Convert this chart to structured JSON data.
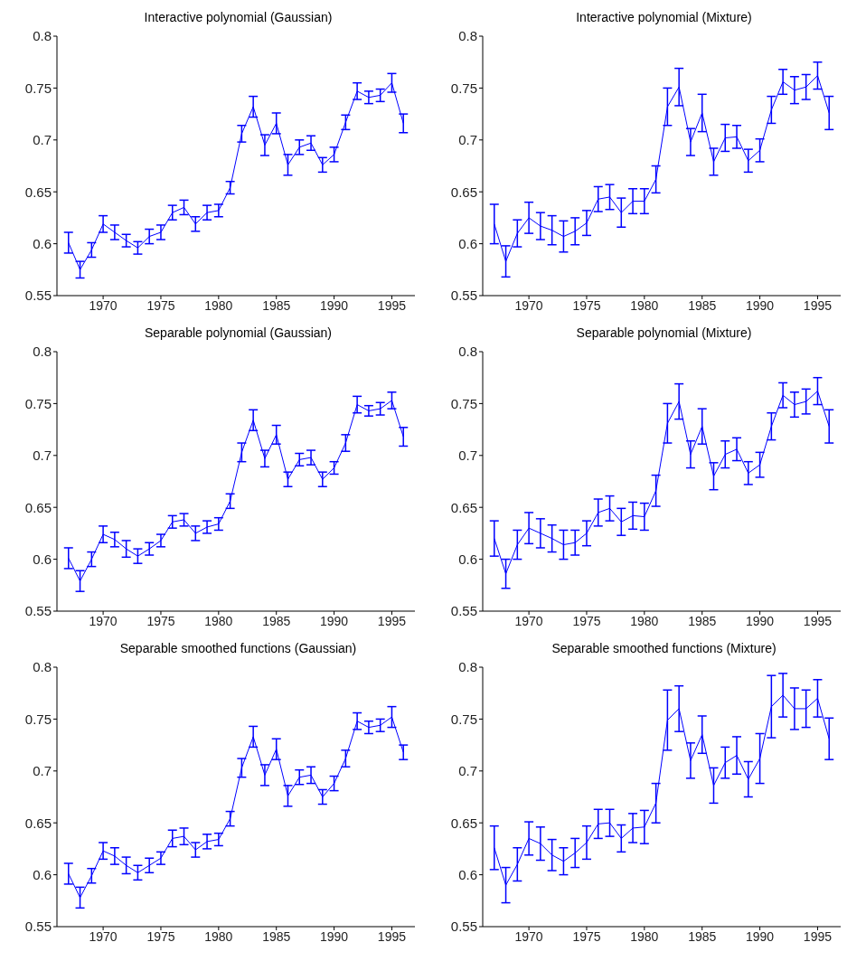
{
  "chart_data": [
    {
      "type": "line",
      "title": "Interactive polynomial (Gaussian)",
      "x": [
        1967,
        1968,
        1969,
        1970,
        1971,
        1972,
        1973,
        1974,
        1975,
        1976,
        1977,
        1978,
        1979,
        1980,
        1981,
        1982,
        1983,
        1984,
        1985,
        1986,
        1987,
        1988,
        1989,
        1990,
        1991,
        1992,
        1993,
        1994,
        1995,
        1996
      ],
      "xlim": [
        1966,
        1997
      ],
      "xticks": [
        1970,
        1975,
        1980,
        1985,
        1990,
        1995
      ],
      "ylim": [
        0.55,
        0.8
      ],
      "yticks": [
        0.55,
        0.6,
        0.65,
        0.7,
        0.75,
        0.8
      ],
      "series": [
        {
          "color": "#0000ff",
          "values": [
            0.601,
            0.575,
            0.594,
            0.619,
            0.611,
            0.603,
            0.596,
            0.607,
            0.611,
            0.63,
            0.635,
            0.619,
            0.63,
            0.632,
            0.654,
            0.706,
            0.732,
            0.695,
            0.716,
            0.676,
            0.693,
            0.697,
            0.676,
            0.686,
            0.717,
            0.747,
            0.741,
            0.743,
            0.755,
            0.716
          ],
          "errors": [
            0.01,
            0.008,
            0.007,
            0.008,
            0.007,
            0.006,
            0.006,
            0.007,
            0.007,
            0.007,
            0.007,
            0.007,
            0.007,
            0.006,
            0.006,
            0.008,
            0.01,
            0.01,
            0.01,
            0.01,
            0.007,
            0.007,
            0.007,
            0.007,
            0.007,
            0.008,
            0.006,
            0.006,
            0.009,
            0.009
          ]
        }
      ]
    },
    {
      "type": "line",
      "title": "Interactive polynomial (Mixture)",
      "x": [
        1967,
        1968,
        1969,
        1970,
        1971,
        1972,
        1973,
        1974,
        1975,
        1976,
        1977,
        1978,
        1979,
        1980,
        1981,
        1982,
        1983,
        1984,
        1985,
        1986,
        1987,
        1988,
        1989,
        1990,
        1991,
        1992,
        1993,
        1994,
        1995,
        1996
      ],
      "xlim": [
        1966,
        1997
      ],
      "xticks": [
        1970,
        1975,
        1980,
        1985,
        1990,
        1995
      ],
      "ylim": [
        0.55,
        0.8
      ],
      "yticks": [
        0.55,
        0.6,
        0.65,
        0.7,
        0.75,
        0.8
      ],
      "series": [
        {
          "color": "#0000ff",
          "values": [
            0.619,
            0.583,
            0.61,
            0.625,
            0.617,
            0.613,
            0.607,
            0.612,
            0.62,
            0.643,
            0.645,
            0.63,
            0.641,
            0.641,
            0.662,
            0.732,
            0.751,
            0.698,
            0.726,
            0.679,
            0.702,
            0.703,
            0.68,
            0.69,
            0.729,
            0.756,
            0.748,
            0.751,
            0.762,
            0.726
          ],
          "errors": [
            0.019,
            0.015,
            0.013,
            0.015,
            0.013,
            0.014,
            0.015,
            0.013,
            0.012,
            0.012,
            0.012,
            0.014,
            0.012,
            0.012,
            0.013,
            0.018,
            0.018,
            0.013,
            0.018,
            0.013,
            0.013,
            0.011,
            0.011,
            0.011,
            0.013,
            0.012,
            0.013,
            0.012,
            0.013,
            0.016
          ]
        }
      ]
    },
    {
      "type": "line",
      "title": "Separable polynomial (Gaussian)",
      "x": [
        1967,
        1968,
        1969,
        1970,
        1971,
        1972,
        1973,
        1974,
        1975,
        1976,
        1977,
        1978,
        1979,
        1980,
        1981,
        1982,
        1983,
        1984,
        1985,
        1986,
        1987,
        1988,
        1989,
        1990,
        1991,
        1992,
        1993,
        1994,
        1995,
        1996
      ],
      "xlim": [
        1966,
        1997
      ],
      "xticks": [
        1970,
        1975,
        1980,
        1985,
        1990,
        1995
      ],
      "ylim": [
        0.55,
        0.8
      ],
      "yticks": [
        0.55,
        0.6,
        0.65,
        0.7,
        0.75,
        0.8
      ],
      "series": [
        {
          "color": "#0000ff",
          "values": [
            0.601,
            0.579,
            0.6,
            0.624,
            0.619,
            0.61,
            0.603,
            0.61,
            0.618,
            0.636,
            0.638,
            0.625,
            0.631,
            0.634,
            0.656,
            0.703,
            0.734,
            0.697,
            0.72,
            0.677,
            0.696,
            0.698,
            0.677,
            0.688,
            0.712,
            0.749,
            0.743,
            0.745,
            0.753,
            0.718
          ],
          "errors": [
            0.01,
            0.01,
            0.007,
            0.008,
            0.007,
            0.008,
            0.007,
            0.006,
            0.006,
            0.006,
            0.006,
            0.007,
            0.006,
            0.006,
            0.007,
            0.009,
            0.01,
            0.008,
            0.009,
            0.007,
            0.006,
            0.007,
            0.007,
            0.006,
            0.008,
            0.008,
            0.005,
            0.006,
            0.008,
            0.009
          ]
        }
      ]
    },
    {
      "type": "line",
      "title": "Separable polynomial (Mixture)",
      "x": [
        1967,
        1968,
        1969,
        1970,
        1971,
        1972,
        1973,
        1974,
        1975,
        1976,
        1977,
        1978,
        1979,
        1980,
        1981,
        1982,
        1983,
        1984,
        1985,
        1986,
        1987,
        1988,
        1989,
        1990,
        1991,
        1992,
        1993,
        1994,
        1995,
        1996
      ],
      "xlim": [
        1966,
        1997
      ],
      "xticks": [
        1970,
        1975,
        1980,
        1985,
        1990,
        1995
      ],
      "ylim": [
        0.55,
        0.8
      ],
      "yticks": [
        0.55,
        0.6,
        0.65,
        0.7,
        0.75,
        0.8
      ],
      "series": [
        {
          "color": "#0000ff",
          "values": [
            0.62,
            0.586,
            0.614,
            0.63,
            0.625,
            0.62,
            0.614,
            0.616,
            0.625,
            0.645,
            0.649,
            0.636,
            0.642,
            0.641,
            0.666,
            0.731,
            0.752,
            0.701,
            0.728,
            0.68,
            0.701,
            0.706,
            0.683,
            0.691,
            0.728,
            0.758,
            0.749,
            0.752,
            0.762,
            0.728
          ],
          "errors": [
            0.017,
            0.014,
            0.014,
            0.015,
            0.014,
            0.013,
            0.014,
            0.012,
            0.012,
            0.013,
            0.012,
            0.013,
            0.013,
            0.013,
            0.015,
            0.019,
            0.017,
            0.013,
            0.017,
            0.013,
            0.013,
            0.011,
            0.011,
            0.012,
            0.013,
            0.012,
            0.012,
            0.012,
            0.013,
            0.016
          ]
        }
      ]
    },
    {
      "type": "line",
      "title": "Separable smoothed functions (Gaussian)",
      "x": [
        1967,
        1968,
        1969,
        1970,
        1971,
        1972,
        1973,
        1974,
        1975,
        1976,
        1977,
        1978,
        1979,
        1980,
        1981,
        1982,
        1983,
        1984,
        1985,
        1986,
        1987,
        1988,
        1989,
        1990,
        1991,
        1992,
        1993,
        1994,
        1995,
        1996
      ],
      "xlim": [
        1966,
        1997
      ],
      "xticks": [
        1970,
        1975,
        1980,
        1985,
        1990,
        1995
      ],
      "ylim": [
        0.55,
        0.8
      ],
      "yticks": [
        0.55,
        0.6,
        0.65,
        0.7,
        0.75,
        0.8
      ],
      "series": [
        {
          "color": "#0000ff",
          "values": [
            0.601,
            0.578,
            0.599,
            0.623,
            0.618,
            0.609,
            0.602,
            0.609,
            0.616,
            0.635,
            0.637,
            0.624,
            0.632,
            0.634,
            0.654,
            0.703,
            0.733,
            0.696,
            0.721,
            0.676,
            0.694,
            0.696,
            0.675,
            0.688,
            0.712,
            0.748,
            0.742,
            0.744,
            0.752,
            0.718
          ],
          "errors": [
            0.01,
            0.01,
            0.007,
            0.008,
            0.008,
            0.008,
            0.007,
            0.007,
            0.006,
            0.008,
            0.008,
            0.007,
            0.007,
            0.006,
            0.007,
            0.009,
            0.01,
            0.01,
            0.01,
            0.01,
            0.007,
            0.008,
            0.007,
            0.007,
            0.008,
            0.008,
            0.006,
            0.006,
            0.01,
            0.007
          ]
        }
      ]
    },
    {
      "type": "line",
      "title": "Separable smoothed functions (Mixture)",
      "x": [
        1967,
        1968,
        1969,
        1970,
        1971,
        1972,
        1973,
        1974,
        1975,
        1976,
        1977,
        1978,
        1979,
        1980,
        1981,
        1982,
        1983,
        1984,
        1985,
        1986,
        1987,
        1988,
        1989,
        1990,
        1991,
        1992,
        1993,
        1994,
        1995,
        1996
      ],
      "xlim": [
        1966,
        1997
      ],
      "xticks": [
        1970,
        1975,
        1980,
        1985,
        1990,
        1995
      ],
      "ylim": [
        0.55,
        0.8
      ],
      "yticks": [
        0.55,
        0.6,
        0.65,
        0.7,
        0.75,
        0.8
      ],
      "series": [
        {
          "color": "#0000ff",
          "values": [
            0.626,
            0.59,
            0.61,
            0.635,
            0.63,
            0.619,
            0.613,
            0.621,
            0.631,
            0.649,
            0.65,
            0.635,
            0.645,
            0.646,
            0.669,
            0.749,
            0.76,
            0.71,
            0.735,
            0.686,
            0.708,
            0.715,
            0.692,
            0.712,
            0.762,
            0.773,
            0.76,
            0.76,
            0.77,
            0.731
          ],
          "errors": [
            0.021,
            0.017,
            0.016,
            0.016,
            0.016,
            0.015,
            0.013,
            0.014,
            0.016,
            0.014,
            0.013,
            0.013,
            0.014,
            0.016,
            0.019,
            0.029,
            0.022,
            0.017,
            0.018,
            0.017,
            0.015,
            0.018,
            0.017,
            0.024,
            0.03,
            0.021,
            0.02,
            0.018,
            0.018,
            0.02
          ]
        }
      ]
    }
  ]
}
